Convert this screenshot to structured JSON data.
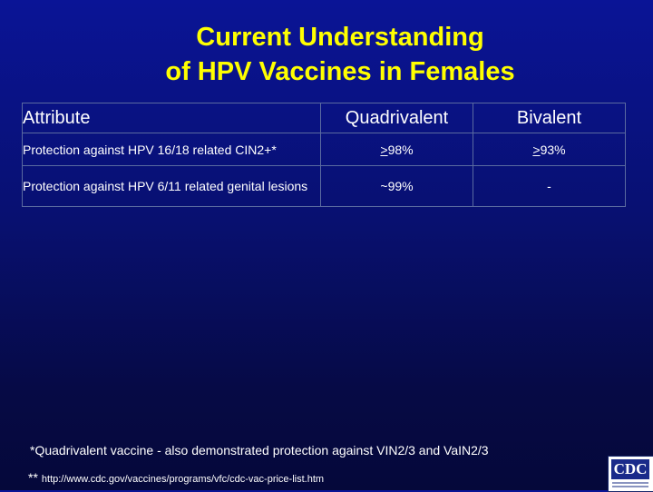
{
  "title": {
    "line1": "Current Understanding",
    "line2": "of HPV Vaccines in Females"
  },
  "table": {
    "headers": [
      "Attribute",
      "Quadrivalent",
      "Bivalent"
    ],
    "rows": [
      {
        "attribute": "Protection against HPV 16/18 related CIN2+*",
        "quadrivalent_symbol": ">",
        "quadrivalent_value": "98%",
        "bivalent_symbol": ">",
        "bivalent_value": "93%"
      },
      {
        "attribute": "Protection against HPV 6/11 related genital lesions",
        "quadrivalent": "~99%",
        "bivalent": "-"
      }
    ]
  },
  "footnote": "*Quadrivalent vaccine - also demonstrated protection against VIN2/3 and VaIN2/3",
  "link": {
    "marker": "**",
    "url": "http://www.cdc.gov/vaccines/programs/vfc/cdc-vac-price-list.htm"
  },
  "logo": {
    "text": "CDC",
    "icon": "cdc-logo-icon"
  },
  "colors": {
    "title": "#ffff00",
    "background_top": "#0a1496",
    "background_bottom": "#05083a",
    "text": "#ffffff"
  }
}
